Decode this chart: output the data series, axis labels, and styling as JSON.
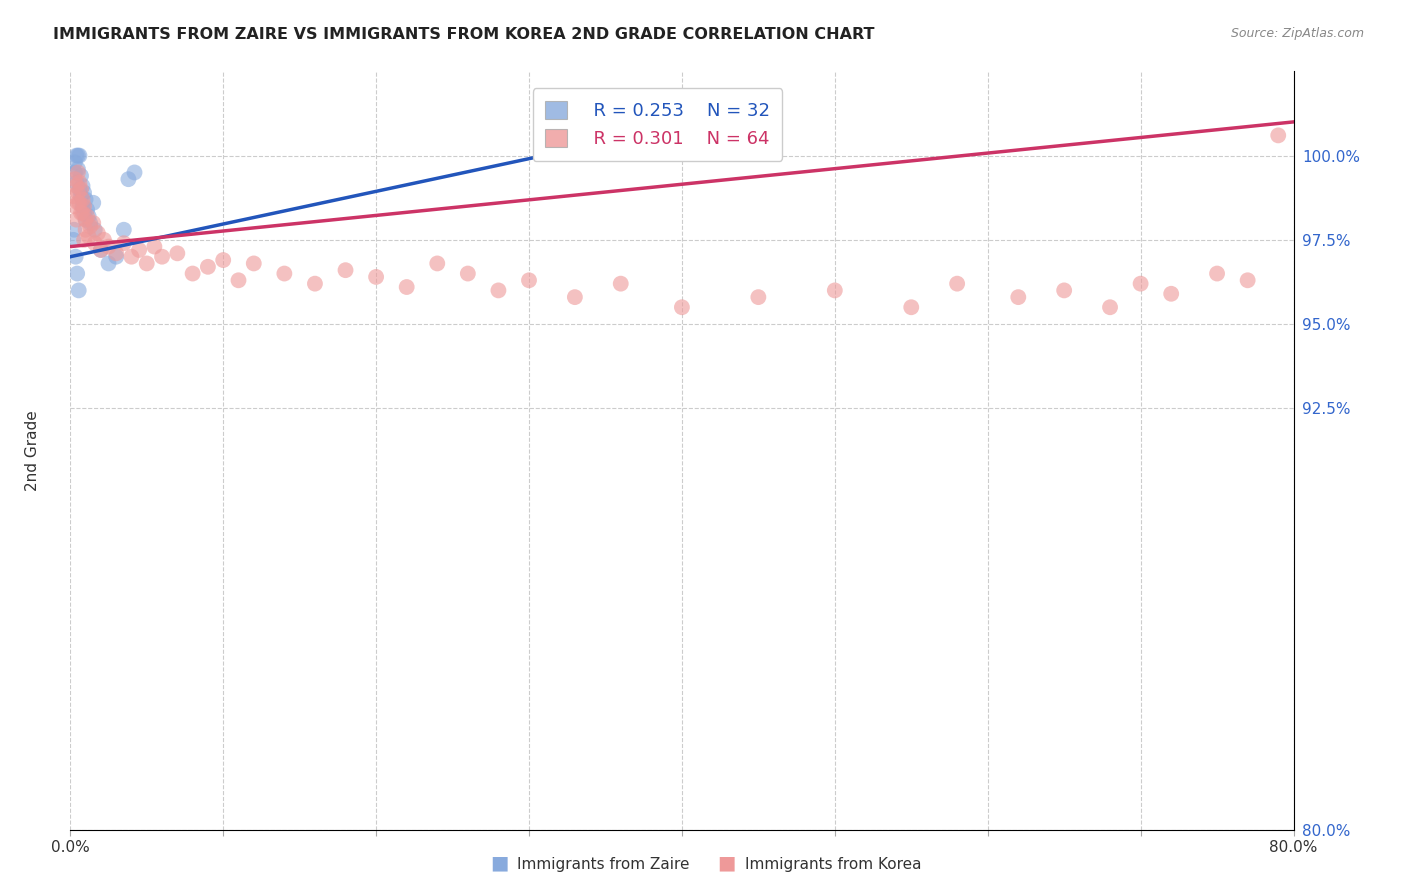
{
  "title": "IMMIGRANTS FROM ZAIRE VS IMMIGRANTS FROM KOREA 2ND GRADE CORRELATION CHART",
  "source": "Source: ZipAtlas.com",
  "ylabel": "2nd Grade",
  "xlim": [
    0.0,
    80.0
  ],
  "ylim": [
    80.0,
    102.5
  ],
  "yticks": [
    80.0,
    92.5,
    95.0,
    97.5,
    100.0
  ],
  "ytick_labels": [
    "80.0%",
    "92.5%",
    "95.0%",
    "97.5%",
    "100.0%"
  ],
  "xticks": [
    0.0,
    10.0,
    20.0,
    30.0,
    40.0,
    50.0,
    60.0,
    70.0,
    80.0
  ],
  "xtick_labels": [
    "0.0%",
    "",
    "",
    "",
    "",
    "",
    "",
    "",
    "80.0%"
  ],
  "legend_r_blue": "R = 0.253",
  "legend_n_blue": "N = 32",
  "legend_r_pink": "R = 0.301",
  "legend_n_pink": "N = 64",
  "blue_color": "#88aadd",
  "pink_color": "#ee9999",
  "blue_line_color": "#2255bb",
  "pink_line_color": "#cc3366",
  "blue_x": [
    0.2,
    0.3,
    0.3,
    0.4,
    0.4,
    0.5,
    0.5,
    0.6,
    0.6,
    0.7,
    0.7,
    0.8,
    0.8,
    0.9,
    0.9,
    1.0,
    1.0,
    1.1,
    1.2,
    1.3,
    1.5,
    1.6,
    2.0,
    2.5,
    3.0,
    3.5,
    0.25,
    0.35,
    0.45,
    0.55,
    3.8,
    4.2
  ],
  "blue_y": [
    97.5,
    99.8,
    99.5,
    100.0,
    99.2,
    100.0,
    99.6,
    100.0,
    99.0,
    99.4,
    98.8,
    99.1,
    98.5,
    98.9,
    98.3,
    98.7,
    98.1,
    98.4,
    98.2,
    98.0,
    98.6,
    97.8,
    97.2,
    96.8,
    97.0,
    97.8,
    97.8,
    97.0,
    96.5,
    96.0,
    99.3,
    99.5
  ],
  "pink_x": [
    0.2,
    0.3,
    0.3,
    0.4,
    0.5,
    0.5,
    0.6,
    0.6,
    0.7,
    0.8,
    0.8,
    0.9,
    1.0,
    1.0,
    1.1,
    1.2,
    1.3,
    1.5,
    1.6,
    1.8,
    2.0,
    2.2,
    2.5,
    3.0,
    3.5,
    4.0,
    4.5,
    5.0,
    5.5,
    6.0,
    7.0,
    8.0,
    9.0,
    10.0,
    11.0,
    12.0,
    14.0,
    16.0,
    18.0,
    20.0,
    22.0,
    24.0,
    26.0,
    28.0,
    30.0,
    33.0,
    36.0,
    40.0,
    45.0,
    50.0,
    55.0,
    58.0,
    62.0,
    65.0,
    68.0,
    70.0,
    72.0,
    75.0,
    77.0,
    79.0,
    0.4,
    0.5,
    0.7,
    0.9
  ],
  "pink_y": [
    98.8,
    99.3,
    98.5,
    99.1,
    99.5,
    98.9,
    99.2,
    98.6,
    99.0,
    98.7,
    98.3,
    98.5,
    98.1,
    97.8,
    98.2,
    97.6,
    97.9,
    98.0,
    97.4,
    97.7,
    97.2,
    97.5,
    97.3,
    97.1,
    97.4,
    97.0,
    97.2,
    96.8,
    97.3,
    97.0,
    97.1,
    96.5,
    96.7,
    96.9,
    96.3,
    96.8,
    96.5,
    96.2,
    96.6,
    96.4,
    96.1,
    96.8,
    96.5,
    96.0,
    96.3,
    95.8,
    96.2,
    95.5,
    95.8,
    96.0,
    95.5,
    96.2,
    95.8,
    96.0,
    95.5,
    96.2,
    95.9,
    96.5,
    96.3,
    100.6,
    98.1,
    98.6,
    98.3,
    97.5
  ],
  "blue_line_start_x": 0.0,
  "blue_line_end_x": 33.0,
  "pink_line_start_x": 0.0,
  "pink_line_end_x": 80.0
}
